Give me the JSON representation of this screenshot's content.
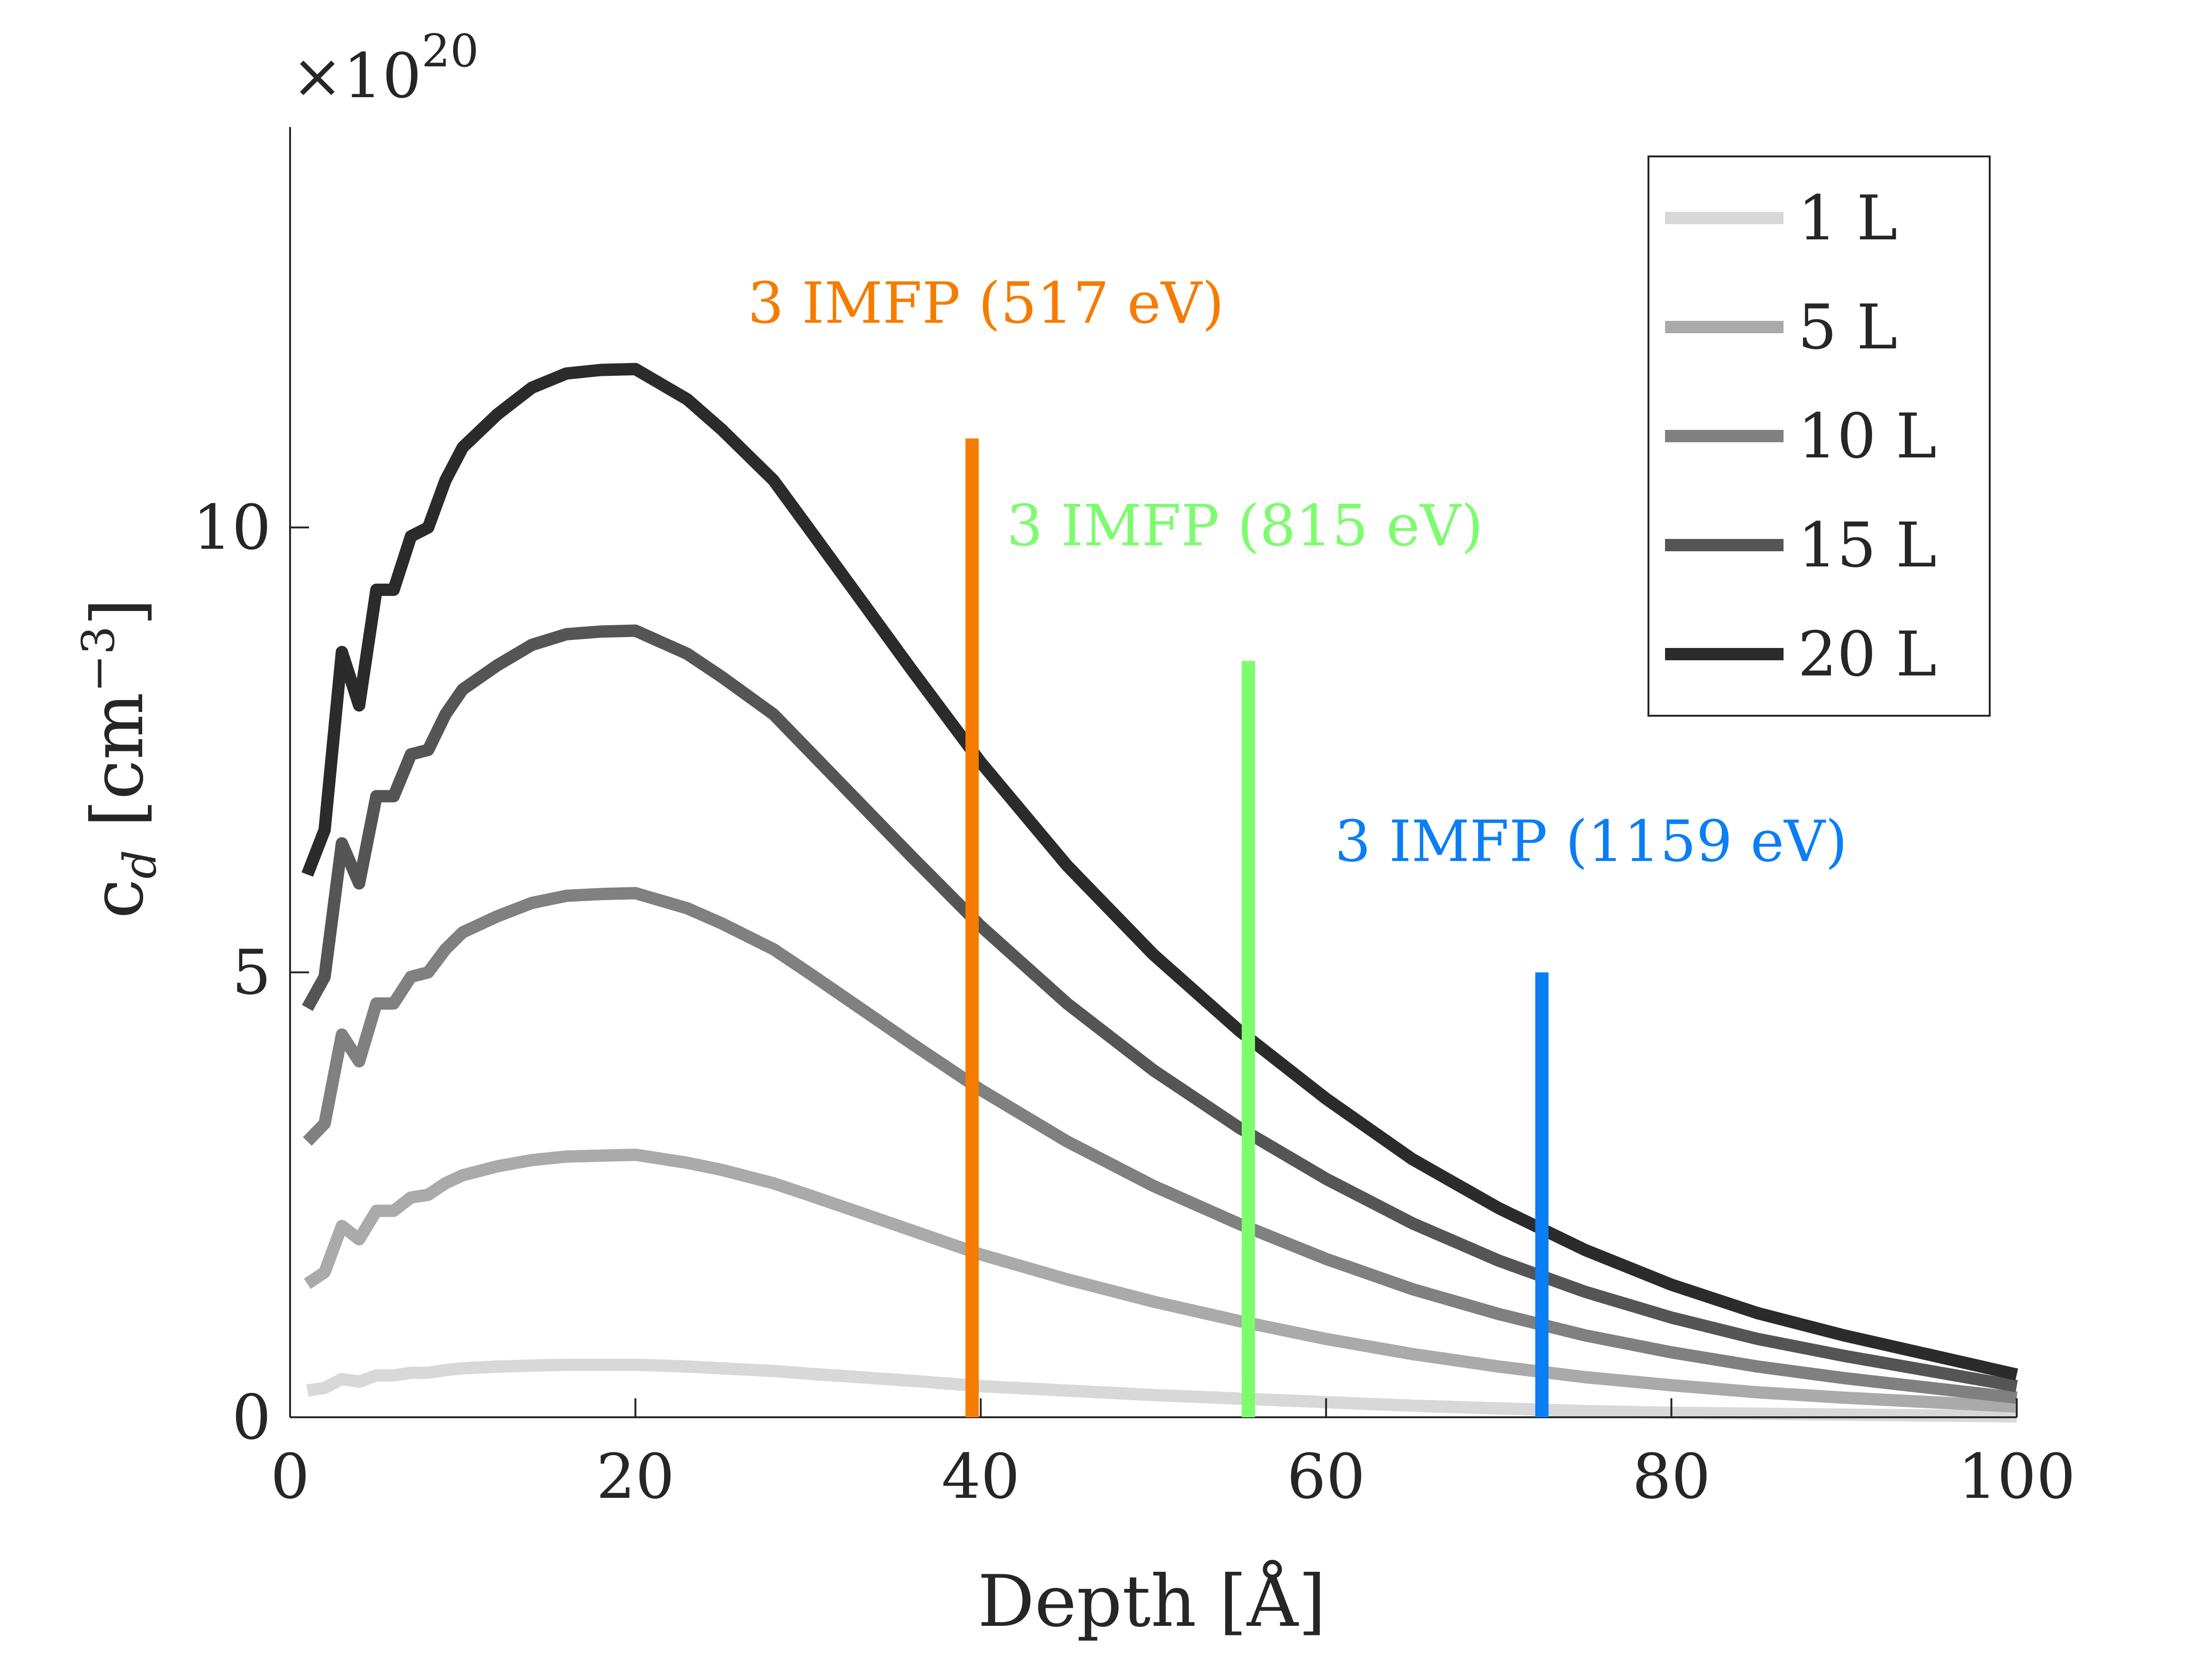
{
  "chart_data": {
    "type": "line",
    "title": "",
    "xlabel": "Depth [Å]",
    "ylabel_main": "c",
    "ylabel_sub": "d",
    "ylabel_unit_prefix": " [cm",
    "ylabel_unit_exp": "−3",
    "ylabel_unit_suffix": "]",
    "y_exponent_prefix": "×10",
    "y_exponent_power": "20",
    "xlim": [
      0,
      100
    ],
    "ylim": [
      0,
      14.5
    ],
    "xticks": [
      0,
      20,
      40,
      60,
      80,
      100
    ],
    "yticks": [
      0,
      5,
      10
    ],
    "x_tick_labels": [
      "0",
      "20",
      "40",
      "60",
      "80",
      "100"
    ],
    "y_tick_labels": [
      "0",
      "5",
      "10"
    ],
    "legend_position": "top-right",
    "x": [
      1,
      2,
      3,
      4,
      5,
      6,
      7,
      8,
      9,
      10,
      12,
      14,
      16,
      18,
      20,
      23,
      25,
      28,
      30,
      33,
      36,
      40,
      45,
      50,
      55,
      60,
      65,
      70,
      75,
      80,
      85,
      90,
      95,
      100
    ],
    "series": [
      {
        "name": "1 L",
        "color": "#d8d8d8",
        "values": [
          0.3,
          0.33,
          0.43,
          0.4,
          0.47,
          0.47,
          0.5,
          0.5,
          0.53,
          0.55,
          0.57,
          0.58,
          0.59,
          0.59,
          0.59,
          0.57,
          0.55,
          0.52,
          0.49,
          0.45,
          0.41,
          0.35,
          0.3,
          0.25,
          0.21,
          0.17,
          0.13,
          0.1,
          0.07,
          0.05,
          0.04,
          0.03,
          0.02,
          0.01
        ]
      },
      {
        "name": "5 L",
        "color": "#aaaaaa",
        "values": [
          1.5,
          1.63,
          2.15,
          2.0,
          2.32,
          2.32,
          2.47,
          2.5,
          2.63,
          2.72,
          2.82,
          2.89,
          2.93,
          2.94,
          2.95,
          2.86,
          2.78,
          2.63,
          2.5,
          2.3,
          2.1,
          1.83,
          1.55,
          1.3,
          1.08,
          0.88,
          0.71,
          0.57,
          0.45,
          0.36,
          0.28,
          0.22,
          0.17,
          0.12
        ]
      },
      {
        "name": "10 L",
        "color": "#808080",
        "values": [
          3.1,
          3.3,
          4.3,
          4.0,
          4.65,
          4.65,
          4.95,
          5.0,
          5.26,
          5.45,
          5.63,
          5.78,
          5.86,
          5.88,
          5.89,
          5.72,
          5.55,
          5.26,
          5.0,
          4.6,
          4.2,
          3.68,
          3.1,
          2.6,
          2.17,
          1.78,
          1.44,
          1.16,
          0.92,
          0.73,
          0.57,
          0.44,
          0.33,
          0.22
        ]
      },
      {
        "name": "15 L",
        "color": "#555555",
        "values": [
          4.6,
          4.95,
          6.45,
          6.0,
          6.98,
          6.98,
          7.45,
          7.5,
          7.9,
          8.18,
          8.45,
          8.68,
          8.8,
          8.83,
          8.84,
          8.58,
          8.32,
          7.9,
          7.5,
          6.9,
          6.3,
          5.52,
          4.65,
          3.9,
          3.25,
          2.68,
          2.18,
          1.76,
          1.41,
          1.12,
          0.88,
          0.69,
          0.52,
          0.35
        ]
      },
      {
        "name": "20 L",
        "color": "#2b2b2b",
        "values": [
          6.1,
          6.6,
          8.6,
          8.0,
          9.3,
          9.3,
          9.9,
          10.0,
          10.53,
          10.9,
          11.27,
          11.57,
          11.73,
          11.77,
          11.78,
          11.44,
          11.1,
          10.53,
          10.0,
          9.2,
          8.4,
          7.36,
          6.2,
          5.2,
          4.34,
          3.58,
          2.9,
          2.35,
          1.88,
          1.49,
          1.17,
          0.92,
          0.7,
          0.48
        ]
      }
    ],
    "vlines": [
      {
        "label": "3 IMFP (517 eV)",
        "x": 39.5,
        "y_top": 11.0,
        "color": "#f57c00",
        "label_x": 26.5,
        "label_y": 12.3
      },
      {
        "label": "3 IMFP (815 eV)",
        "x": 55.5,
        "y_top": 8.5,
        "color": "#7dfc6e",
        "label_x": 41.5,
        "label_y": 9.8
      },
      {
        "label": "3 IMFP (1159 eV)",
        "x": 72.5,
        "y_top": 5.0,
        "color": "#0a7ef5",
        "label_x": 60.5,
        "label_y": 6.25
      }
    ]
  }
}
